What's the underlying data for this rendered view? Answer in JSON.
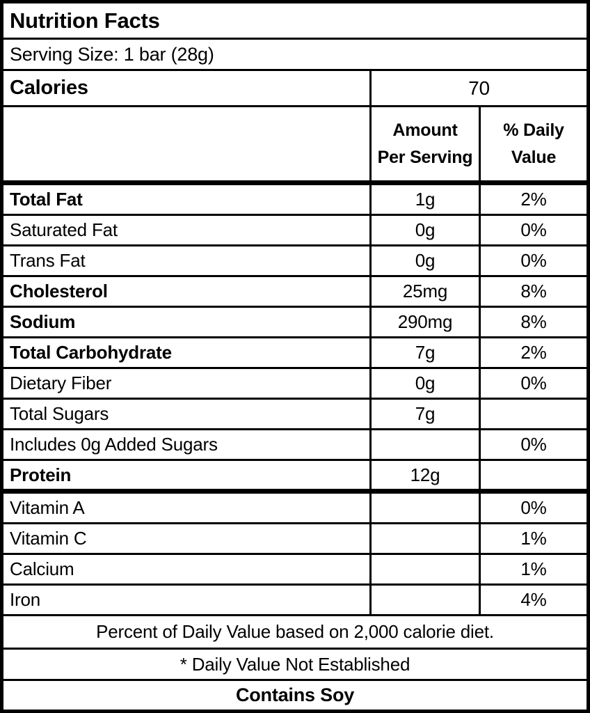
{
  "label": {
    "title": "Nutrition Facts",
    "serving_size": "Serving Size: 1 bar (28g)",
    "calories": {
      "label": "Calories",
      "value": "70"
    },
    "columns": {
      "amount_line1": "Amount",
      "amount_line2": "Per Serving",
      "dv_line1": "% Daily",
      "dv_line2": "Value"
    },
    "rows": [
      {
        "label": "Total Fat",
        "amount": "1g",
        "dv": "2%",
        "bold": true
      },
      {
        "label": "Saturated Fat",
        "amount": "0g",
        "dv": "0%",
        "bold": false
      },
      {
        "label": "Trans Fat",
        "amount": "0g",
        "dv": "0%",
        "bold": false
      },
      {
        "label": "Cholesterol",
        "amount": "25mg",
        "dv": "8%",
        "bold": true
      },
      {
        "label": "Sodium",
        "amount": "290mg",
        "dv": "8%",
        "bold": true
      },
      {
        "label": "Total Carbohydrate",
        "amount": "7g",
        "dv": "2%",
        "bold": true
      },
      {
        "label": "Dietary Fiber",
        "amount": "0g",
        "dv": "0%",
        "bold": false
      },
      {
        "label": "Total Sugars",
        "amount": "7g",
        "dv": "",
        "bold": false
      },
      {
        "label": "Includes 0g Added Sugars",
        "amount": "",
        "dv": "0%",
        "bold": false
      },
      {
        "label": "Protein",
        "amount": "12g",
        "dv": "",
        "bold": true
      },
      {
        "label": "Vitamin A",
        "amount": "",
        "dv": "0%",
        "bold": false
      },
      {
        "label": "Vitamin C",
        "amount": "",
        "dv": "1%",
        "bold": false
      },
      {
        "label": "Calcium",
        "amount": "",
        "dv": "1%",
        "bold": false
      },
      {
        "label": "Iron",
        "amount": "",
        "dv": "4%",
        "bold": false
      }
    ],
    "footnotes": [
      "Percent of Daily Value based on 2,000 calorie diet.",
      "* Daily Value Not Established"
    ],
    "allergen": "Contains Soy"
  },
  "colors": {
    "text": "#000000",
    "background": "#ffffff",
    "border": "#000000"
  }
}
